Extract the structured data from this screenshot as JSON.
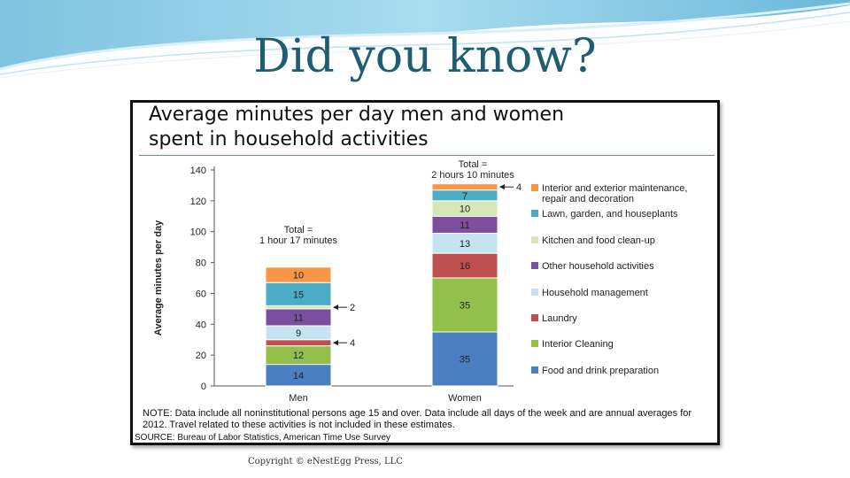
{
  "slide": {
    "title": "Did you know?",
    "copyright": "Copyright © eNestEgg Press, LLC"
  },
  "chart_data": {
    "type": "bar",
    "stacked": true,
    "title": "Average minutes per day men and women spent in household activities",
    "title_lines": [
      "Average minutes per day men and women",
      "spent in household activities"
    ],
    "ylabel": "Average minutes per day",
    "xlabel": "",
    "ylim": [
      0,
      140
    ],
    "yticks": [
      0,
      20,
      40,
      60,
      80,
      100,
      120,
      140
    ],
    "grid": false,
    "legend_position": "right",
    "categories": [
      "Men",
      "Women"
    ],
    "series": [
      {
        "name": "Food and drink preparation",
        "color": "#4a7fc1",
        "values": [
          14,
          35
        ]
      },
      {
        "name": "Interior Cleaning",
        "color": "#92c04a",
        "values": [
          12,
          35
        ]
      },
      {
        "name": "Laundry",
        "color": "#c0504d",
        "values": [
          4,
          16
        ]
      },
      {
        "name": "Household management",
        "color": "#c5e3f0",
        "values": [
          9,
          13
        ]
      },
      {
        "name": "Other household activities",
        "color": "#7b4f9e",
        "values": [
          11,
          11
        ]
      },
      {
        "name": "Kitchen and food clean-up",
        "color": "#d6e8b8",
        "values": [
          2,
          10
        ]
      },
      {
        "name": "Lawn, garden, and houseplants",
        "color": "#4bacc6",
        "values": [
          15,
          7
        ]
      },
      {
        "name": "Interior and exterior maintenance, repair and decoration",
        "color": "#f79646",
        "values": [
          10,
          4
        ]
      }
    ],
    "legend_lines": [
      [
        "Interior and exterior maintenance,",
        "repair and decoration"
      ],
      [
        "Lawn, garden, and houseplants"
      ],
      [
        "Kitchen and food clean-up"
      ],
      [
        "Other household activities"
      ],
      [
        "Household management"
      ],
      [
        "Laundry"
      ],
      [
        "Interior Cleaning"
      ],
      [
        "Food and drink preparation"
      ]
    ],
    "totals": [
      {
        "category": "Men",
        "lines": [
          "Total =",
          "1 hour  17 minutes"
        ]
      },
      {
        "category": "Women",
        "lines": [
          "Total =",
          "2 hours 10 minutes"
        ]
      }
    ],
    "callouts": [
      {
        "category": "Men",
        "series": "Kitchen and food clean-up",
        "label": "2"
      },
      {
        "category": "Men",
        "series": "Laundry",
        "label": "4"
      },
      {
        "category": "Women",
        "series": "Interior and exterior maintenance, repair and decoration",
        "label": "4"
      }
    ],
    "note": "NOTE: Data include all noninstitutional persons age 15 and over. Data include all days of the week and are annual averages for 2012. Travel related to these activities is not included in these estimates.",
    "source": "SOURCE: Bureau of Labor Statistics, American Time Use Survey"
  }
}
